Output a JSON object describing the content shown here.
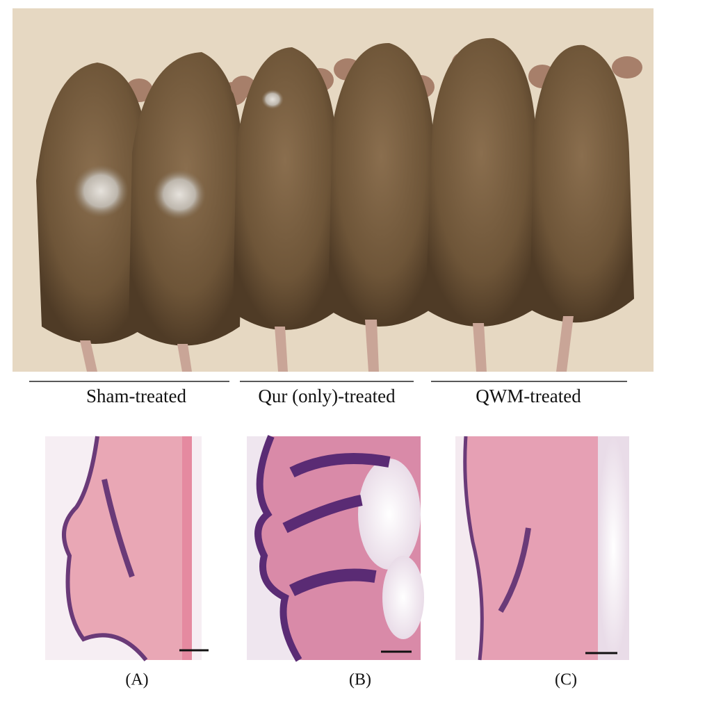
{
  "groups": [
    {
      "label": "Sham-treated"
    },
    {
      "label": "Qur (only)-treated"
    },
    {
      "label": "QWM-treated"
    }
  ],
  "panels": [
    {
      "label": "(A)"
    },
    {
      "label": "(B)"
    },
    {
      "label": "(C)"
    }
  ]
}
